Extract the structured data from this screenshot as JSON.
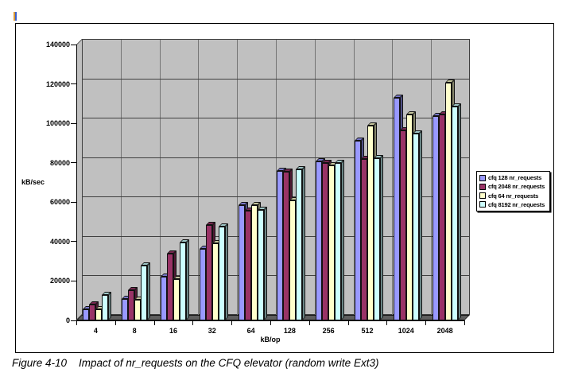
{
  "page": {
    "revision_bar_colors": [
      "#dd9933",
      "#3b62cc"
    ],
    "caption_label": "Figure 4-10",
    "caption_text": "Impact of nr_requests on the CFQ elevator (random write Ext3)"
  },
  "chart_data": {
    "type": "bar",
    "style": "3d-clustered-column",
    "title": "",
    "xlabel": "kB/op",
    "ylabel": "kB/sec",
    "categories": [
      "4",
      "8",
      "16",
      "32",
      "64",
      "128",
      "256",
      "512",
      "1024",
      "2048"
    ],
    "series": [
      {
        "name": "cfq 128 nr_requests",
        "color": "#9999ff",
        "values": [
          5500,
          11000,
          22000,
          36500,
          58500,
          76000,
          80500,
          91000,
          113000,
          103500
        ]
      },
      {
        "name": "cfq 2048 nr_requests",
        "color": "#993366",
        "values": [
          8000,
          15500,
          34000,
          48500,
          55500,
          75500,
          80000,
          82000,
          96500,
          104500
        ]
      },
      {
        "name": "cfq 64 nr_requests",
        "color": "#ffffcc",
        "values": [
          5500,
          10500,
          21000,
          39000,
          58500,
          61000,
          78500,
          99000,
          104500,
          120500
        ]
      },
      {
        "name": "cfq 8192 nr_requests",
        "color": "#ccffff",
        "values": [
          13000,
          28000,
          39500,
          47500,
          56000,
          76500,
          80000,
          82500,
          95000,
          108500
        ]
      }
    ],
    "ylim": [
      0,
      140000
    ],
    "yticks": [
      0,
      20000,
      40000,
      60000,
      80000,
      100000,
      120000,
      140000
    ],
    "legend_position": "right",
    "grid": "horizontal-major+vertical-category",
    "wall_color": "#c0c0c0",
    "floor_color": "#5f5f5f",
    "gridline_color": "#404040",
    "vgridline_color": "#757575"
  }
}
